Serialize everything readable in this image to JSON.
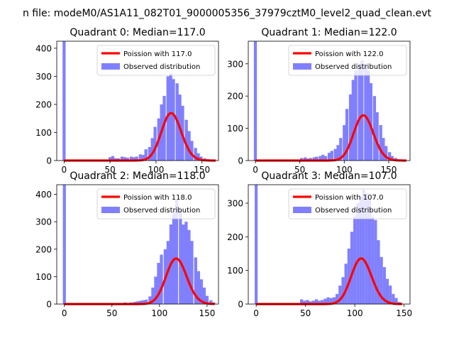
{
  "figure": {
    "suptitle": "n file: modeM0/AS1A11_082T01_9000005356_37979cztM0_level2_quad_clean.evt",
    "background": "#ffffff"
  },
  "colors": {
    "poisson": "#ff0000",
    "observed": "#8080ff",
    "axis": "#000000"
  },
  "chart_data": [
    {
      "type": "bar",
      "title": "Quadrant 0: Median=117.0",
      "legend": [
        "Poission with 117.0",
        "Observed distribution"
      ],
      "legend_loc": "upper right",
      "xlim": [
        -8,
        168
      ],
      "ylim": [
        0,
        425
      ],
      "xticks": [
        0,
        50,
        100,
        150
      ],
      "yticks": [
        0,
        100,
        200,
        300,
        400
      ],
      "bin_width": 3.3,
      "spike": {
        "x": 0,
        "y": 425
      },
      "bins": [
        [
          50,
          12
        ],
        [
          53,
          16
        ],
        [
          56,
          8
        ],
        [
          59,
          8
        ],
        [
          63,
          14
        ],
        [
          66,
          12
        ],
        [
          69,
          10
        ],
        [
          73,
          14
        ],
        [
          76,
          12
        ],
        [
          79,
          14
        ],
        [
          83,
          22
        ],
        [
          86,
          20
        ],
        [
          89,
          40
        ],
        [
          93,
          48
        ],
        [
          96,
          80
        ],
        [
          99,
          120
        ],
        [
          103,
          150
        ],
        [
          106,
          200
        ],
        [
          109,
          230
        ],
        [
          113,
          300
        ],
        [
          116,
          310
        ],
        [
          119,
          290
        ],
        [
          123,
          275
        ],
        [
          126,
          235
        ],
        [
          129,
          195
        ],
        [
          133,
          145
        ],
        [
          136,
          105
        ],
        [
          139,
          70
        ],
        [
          143,
          45
        ],
        [
          146,
          26
        ],
        [
          149,
          14
        ],
        [
          153,
          8
        ],
        [
          156,
          5
        ],
        [
          159,
          2
        ]
      ],
      "poisson": {
        "lambda": 117.0,
        "scale": 4580,
        "x_range": [
          0,
          165
        ]
      }
    },
    {
      "type": "bar",
      "title": "Quadrant 1: Median=122.0",
      "legend": [
        "Poission with 122.0",
        "Observed distribution"
      ],
      "legend_loc": "upper right",
      "xlim": [
        -8,
        174
      ],
      "ylim": [
        0,
        370
      ],
      "xticks": [
        0,
        50,
        100,
        150
      ],
      "yticks": [
        0,
        100,
        200,
        300
      ],
      "bin_width": 3.4,
      "spike": {
        "x": 0,
        "y": 370
      },
      "bins": [
        [
          52,
          8
        ],
        [
          56,
          10
        ],
        [
          59,
          6
        ],
        [
          62,
          8
        ],
        [
          66,
          10
        ],
        [
          69,
          12
        ],
        [
          73,
          14
        ],
        [
          76,
          18
        ],
        [
          79,
          14
        ],
        [
          83,
          24
        ],
        [
          86,
          30
        ],
        [
          90,
          36
        ],
        [
          93,
          48
        ],
        [
          96,
          70
        ],
        [
          100,
          110
        ],
        [
          103,
          160
        ],
        [
          107,
          205
        ],
        [
          110,
          250
        ],
        [
          113,
          280
        ],
        [
          117,
          300
        ],
        [
          120,
          310
        ],
        [
          124,
          300
        ],
        [
          127,
          280
        ],
        [
          130,
          240
        ],
        [
          134,
          200
        ],
        [
          137,
          150
        ],
        [
          141,
          110
        ],
        [
          144,
          70
        ],
        [
          147,
          45
        ],
        [
          151,
          26
        ],
        [
          154,
          14
        ],
        [
          158,
          8
        ],
        [
          161,
          4
        ],
        [
          164,
          2
        ]
      ],
      "poisson": {
        "lambda": 122.0,
        "scale": 3880,
        "x_range": [
          0,
          170
        ]
      }
    },
    {
      "type": "bar",
      "title": "Quadrant 2: Median=118.0",
      "legend": [
        "Poission with 118.0",
        "Observed distribution"
      ],
      "legend_loc": "upper right",
      "xlim": [
        -8,
        162
      ],
      "ylim": [
        0,
        435
      ],
      "xticks": [
        0,
        50,
        100,
        150
      ],
      "yticks": [
        0,
        100,
        200,
        300,
        400
      ],
      "bin_width": 3.2,
      "spike": {
        "x": 0,
        "y": 435
      },
      "bins": [
        [
          64,
          6
        ],
        [
          67,
          4
        ],
        [
          70,
          6
        ],
        [
          74,
          8
        ],
        [
          77,
          10
        ],
        [
          80,
          12
        ],
        [
          83,
          14
        ],
        [
          86,
          16
        ],
        [
          90,
          28
        ],
        [
          93,
          60
        ],
        [
          96,
          100
        ],
        [
          99,
          150
        ],
        [
          102,
          180
        ],
        [
          106,
          200
        ],
        [
          109,
          230
        ],
        [
          112,
          290
        ],
        [
          115,
          330
        ],
        [
          118,
          380
        ],
        [
          122,
          340
        ],
        [
          125,
          290
        ],
        [
          128,
          300
        ],
        [
          131,
          270
        ],
        [
          134,
          230
        ],
        [
          138,
          170
        ],
        [
          141,
          120
        ],
        [
          144,
          90
        ],
        [
          147,
          60
        ],
        [
          150,
          30
        ],
        [
          154,
          14
        ],
        [
          157,
          6
        ]
      ],
      "poisson": {
        "lambda": 118.0,
        "scale": 4520,
        "x_range": [
          0,
          158
        ]
      }
    },
    {
      "type": "bar",
      "title": "Quadrant 3: Median=107.0",
      "legend": [
        "Poission with 107.0",
        "Observed distribution"
      ],
      "legend_loc": "upper right",
      "xlim": [
        -8,
        156
      ],
      "ylim": [
        0,
        355
      ],
      "xticks": [
        0,
        50,
        100,
        150
      ],
      "yticks": [
        0,
        100,
        200,
        300
      ],
      "bin_width": 3.0,
      "spike": {
        "x": 0,
        "y": 355
      },
      "bins": [
        [
          46,
          14
        ],
        [
          49,
          10
        ],
        [
          52,
          12
        ],
        [
          55,
          8
        ],
        [
          58,
          10
        ],
        [
          61,
          14
        ],
        [
          64,
          10
        ],
        [
          67,
          12
        ],
        [
          70,
          16
        ],
        [
          73,
          20
        ],
        [
          76,
          18
        ],
        [
          79,
          20
        ],
        [
          82,
          30
        ],
        [
          85,
          55
        ],
        [
          88,
          80
        ],
        [
          91,
          120
        ],
        [
          94,
          165
        ],
        [
          97,
          215
        ],
        [
          100,
          260
        ],
        [
          103,
          300
        ],
        [
          106,
          320
        ],
        [
          109,
          340
        ],
        [
          112,
          330
        ],
        [
          115,
          310
        ],
        [
          118,
          260
        ],
        [
          121,
          250
        ],
        [
          124,
          190
        ],
        [
          127,
          140
        ],
        [
          130,
          110
        ],
        [
          133,
          75
        ],
        [
          136,
          55
        ],
        [
          139,
          30
        ],
        [
          142,
          18
        ],
        [
          145,
          6
        ]
      ],
      "poisson": {
        "lambda": 107.0,
        "scale": 3520,
        "x_range": [
          0,
          148
        ]
      }
    }
  ]
}
